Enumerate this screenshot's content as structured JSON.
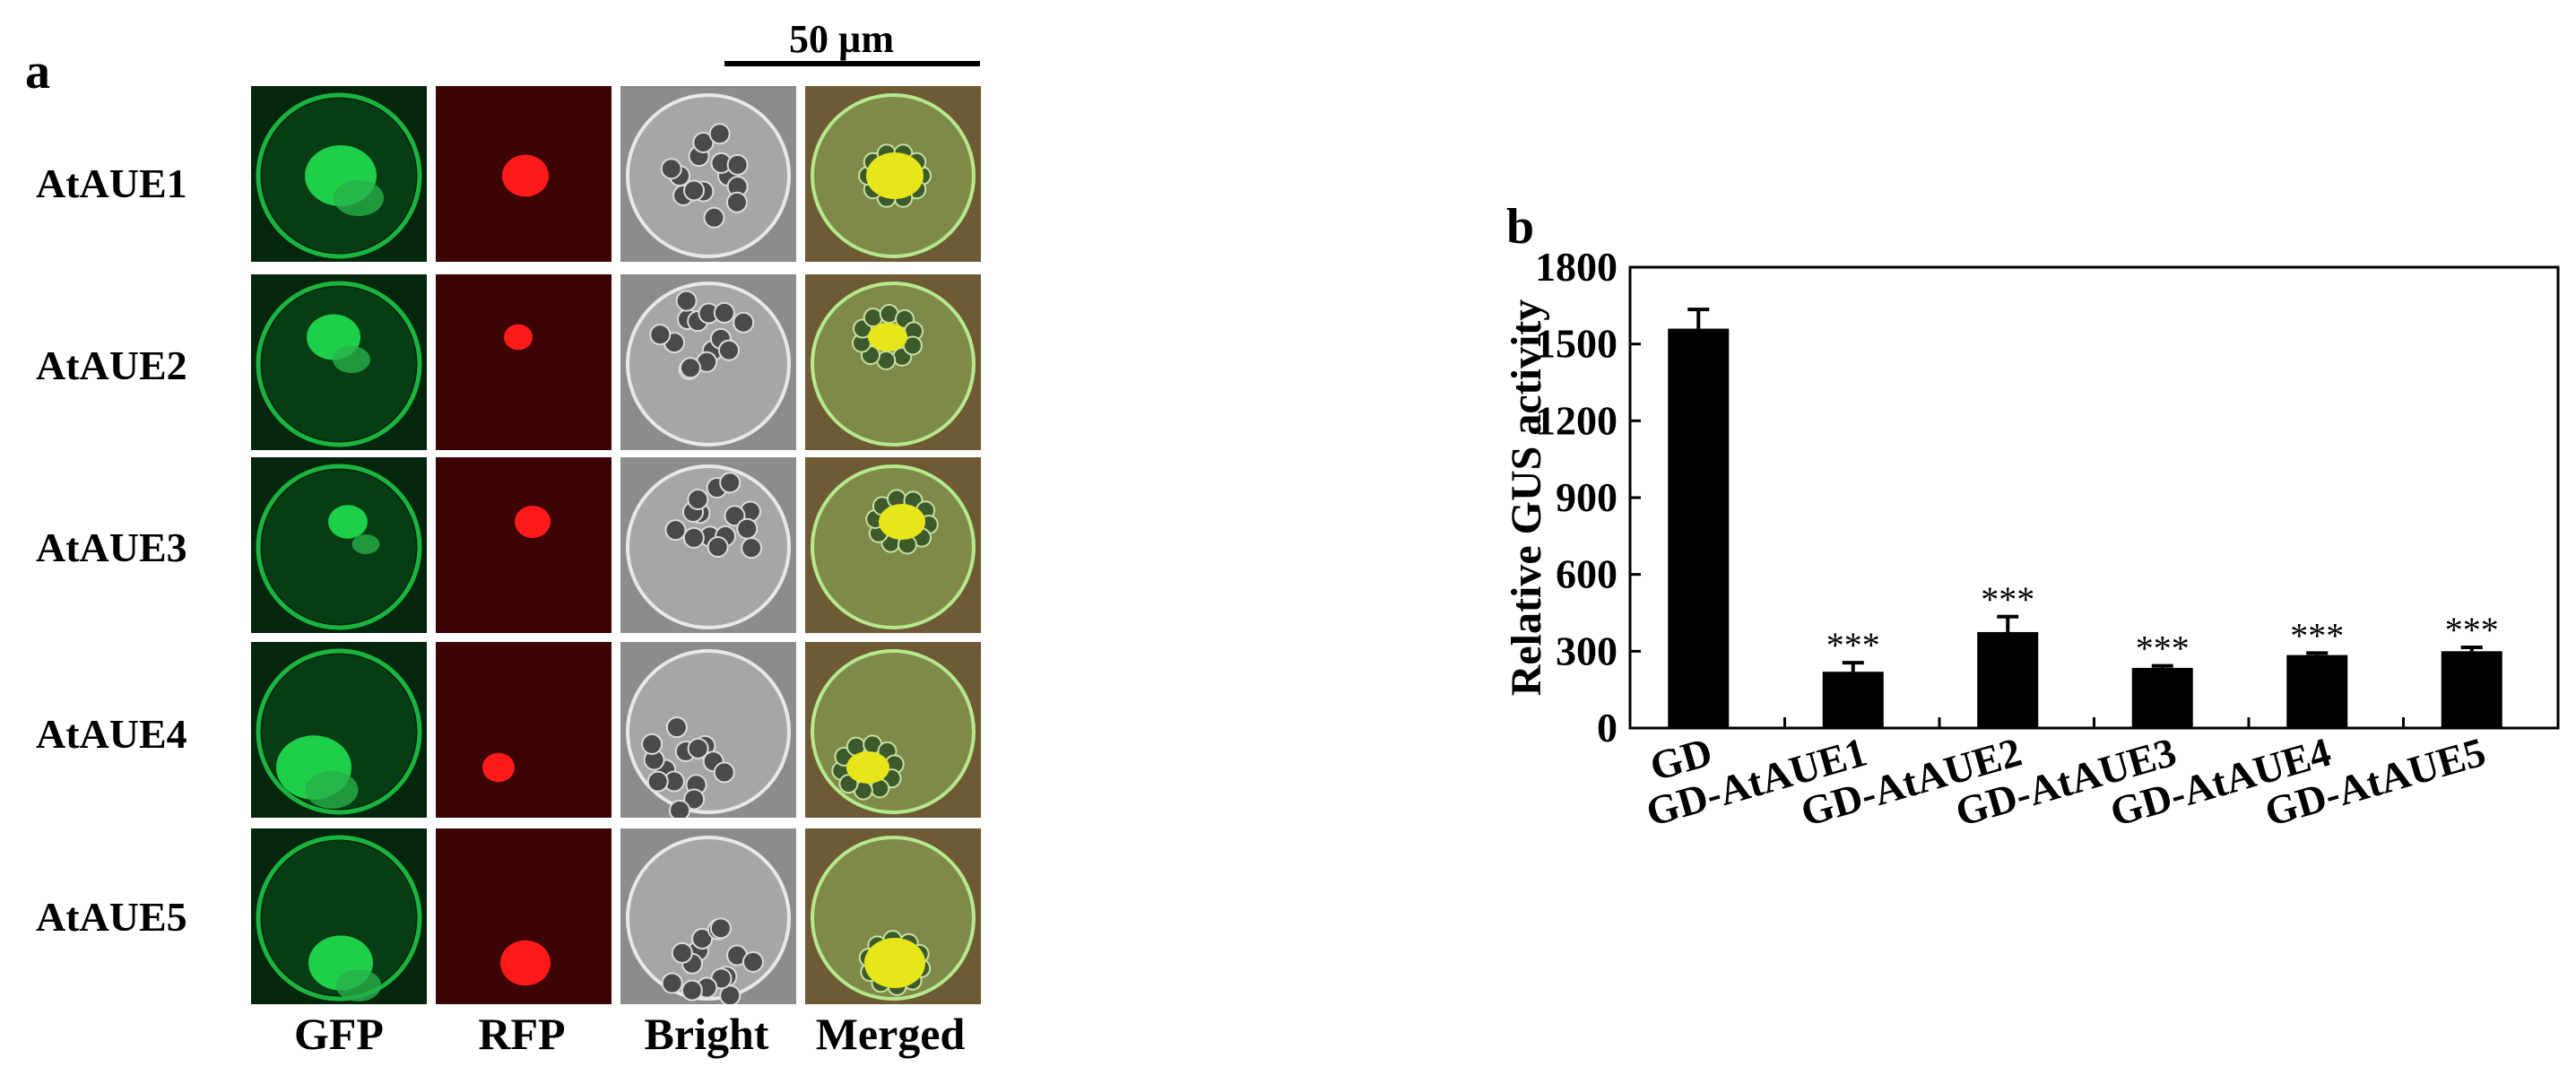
{
  "panel_a": {
    "letter": "a",
    "scale_bar": "50 µm",
    "columns": [
      "GFP",
      "RFP",
      "Bright",
      "Merged"
    ],
    "rows": [
      "AtAUE1",
      "AtAUE2",
      "AtAUE3",
      "AtAUE4",
      "AtAUE5"
    ],
    "colors": {
      "gfp": "#1ecf4a",
      "rfp": "#ff1a1a",
      "bright_bg": "#8c8c8c",
      "merged_core": "#e6e61a"
    }
  },
  "panel_b": {
    "letter": "b"
  },
  "chart_data": {
    "type": "bar",
    "ylabel": "Relative GUS activity",
    "xlabel": "",
    "ylim": [
      0,
      1800
    ],
    "yticks": [
      0,
      300,
      600,
      900,
      1200,
      1500,
      1800
    ],
    "categories": [
      "GD",
      "GD-AtAUE1",
      "GD-AtAUE2",
      "GD-AtAUE3",
      "GD-AtAUE4",
      "GD-AtAUE5"
    ],
    "values": [
      1560,
      220,
      375,
      235,
      285,
      300
    ],
    "errors": [
      75,
      35,
      60,
      8,
      8,
      15
    ],
    "annotations": [
      "",
      "***",
      "***",
      "***",
      "***",
      "***"
    ],
    "grid": false,
    "bar_color": "#000000"
  }
}
